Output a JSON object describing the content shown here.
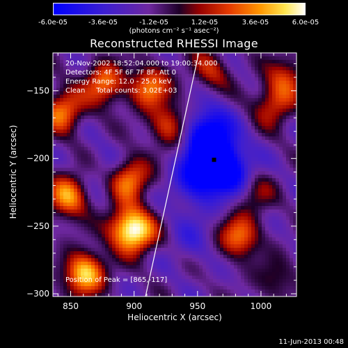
{
  "colorbar": {
    "ticks": [
      "-6.0e-05",
      "-3.6e-05",
      "-1.2e-05",
      "1.2e-05",
      "3.6e-05",
      "6.0e-05"
    ],
    "units": "(photons cm⁻² s⁻¹ asec⁻²)",
    "range": [
      -6e-05,
      6e-05
    ]
  },
  "title": "Reconstructed RHESSI Image",
  "info": {
    "time": "20-Nov-2002 18:52:04.000 to 19:00:34.000",
    "detectors": "Detectors: 4F 5F 6F 7F 8F, Att 0",
    "energy": "Energy Range: 12.0 - 25.0 keV",
    "clean": "Clean     Total counts: 3.02E+03",
    "position": "Position of Peak = [865,-117]"
  },
  "axes": {
    "xlabel": "Heliocentric X (arcsec)",
    "ylabel": "Heliocentric Y (arcsec)"
  },
  "datestamp": "11-Jun-2013 00:48",
  "chart_data": {
    "type": "heatmap",
    "title": "Reconstructed RHESSI Image",
    "xlabel": "Heliocentric X (arcsec)",
    "ylabel": "Heliocentric Y (arcsec)",
    "xlim": [
      836,
      1028
    ],
    "ylim": [
      -302,
      -122
    ],
    "xticks": [
      850,
      900,
      950,
      1000
    ],
    "yticks": [
      -300,
      -250,
      -200,
      -150
    ],
    "colorbar_label": "(photons cm⁻² s⁻¹ asec⁻²)",
    "colorbar_range": [
      -6e-05,
      6e-05
    ],
    "limb_line": [
      [
        909,
        -302
      ],
      [
        951,
        -122
      ]
    ],
    "min_marker": [
      963,
      -201
    ],
    "hotspots": [
      {
        "x": 861,
        "y": -285,
        "v": 5.6e-05
      },
      {
        "x": 848,
        "y": -228,
        "v": 4.6e-05
      },
      {
        "x": 844,
        "y": -165,
        "v": 4.2e-05
      },
      {
        "x": 876,
        "y": -145,
        "v": 4e-05
      },
      {
        "x": 896,
        "y": -215,
        "v": 4.6e-05
      },
      {
        "x": 912,
        "y": -147,
        "v": 4e-05
      },
      {
        "x": 927,
        "y": -175,
        "v": 3.3e-05
      },
      {
        "x": 892,
        "y": -250,
        "v": 3.2e-05
      },
      {
        "x": 902,
        "y": -255,
        "v": 4.8e-05
      },
      {
        "x": 983,
        "y": -258,
        "v": 4e-05
      },
      {
        "x": 1010,
        "y": -160,
        "v": 3e-05
      },
      {
        "x": 1020,
        "y": -140,
        "v": 2.8e-05
      },
      {
        "x": 995,
        "y": -225,
        "v": 2.2e-05
      },
      {
        "x": 960,
        "y": -135,
        "v": 2.5e-05
      },
      {
        "x": 1012,
        "y": -290,
        "v": 1.8e-05
      }
    ],
    "coldspots": [
      {
        "x": 962,
        "y": -200,
        "v": -5.5e-05
      },
      {
        "x": 958,
        "y": -178,
        "v": -3.5e-05
      },
      {
        "x": 978,
        "y": -212,
        "v": -3e-05
      },
      {
        "x": 948,
        "y": -218,
        "v": -2.6e-05
      },
      {
        "x": 945,
        "y": -260,
        "v": -1.2e-05
      },
      {
        "x": 880,
        "y": -210,
        "v": -1e-05
      }
    ]
  }
}
